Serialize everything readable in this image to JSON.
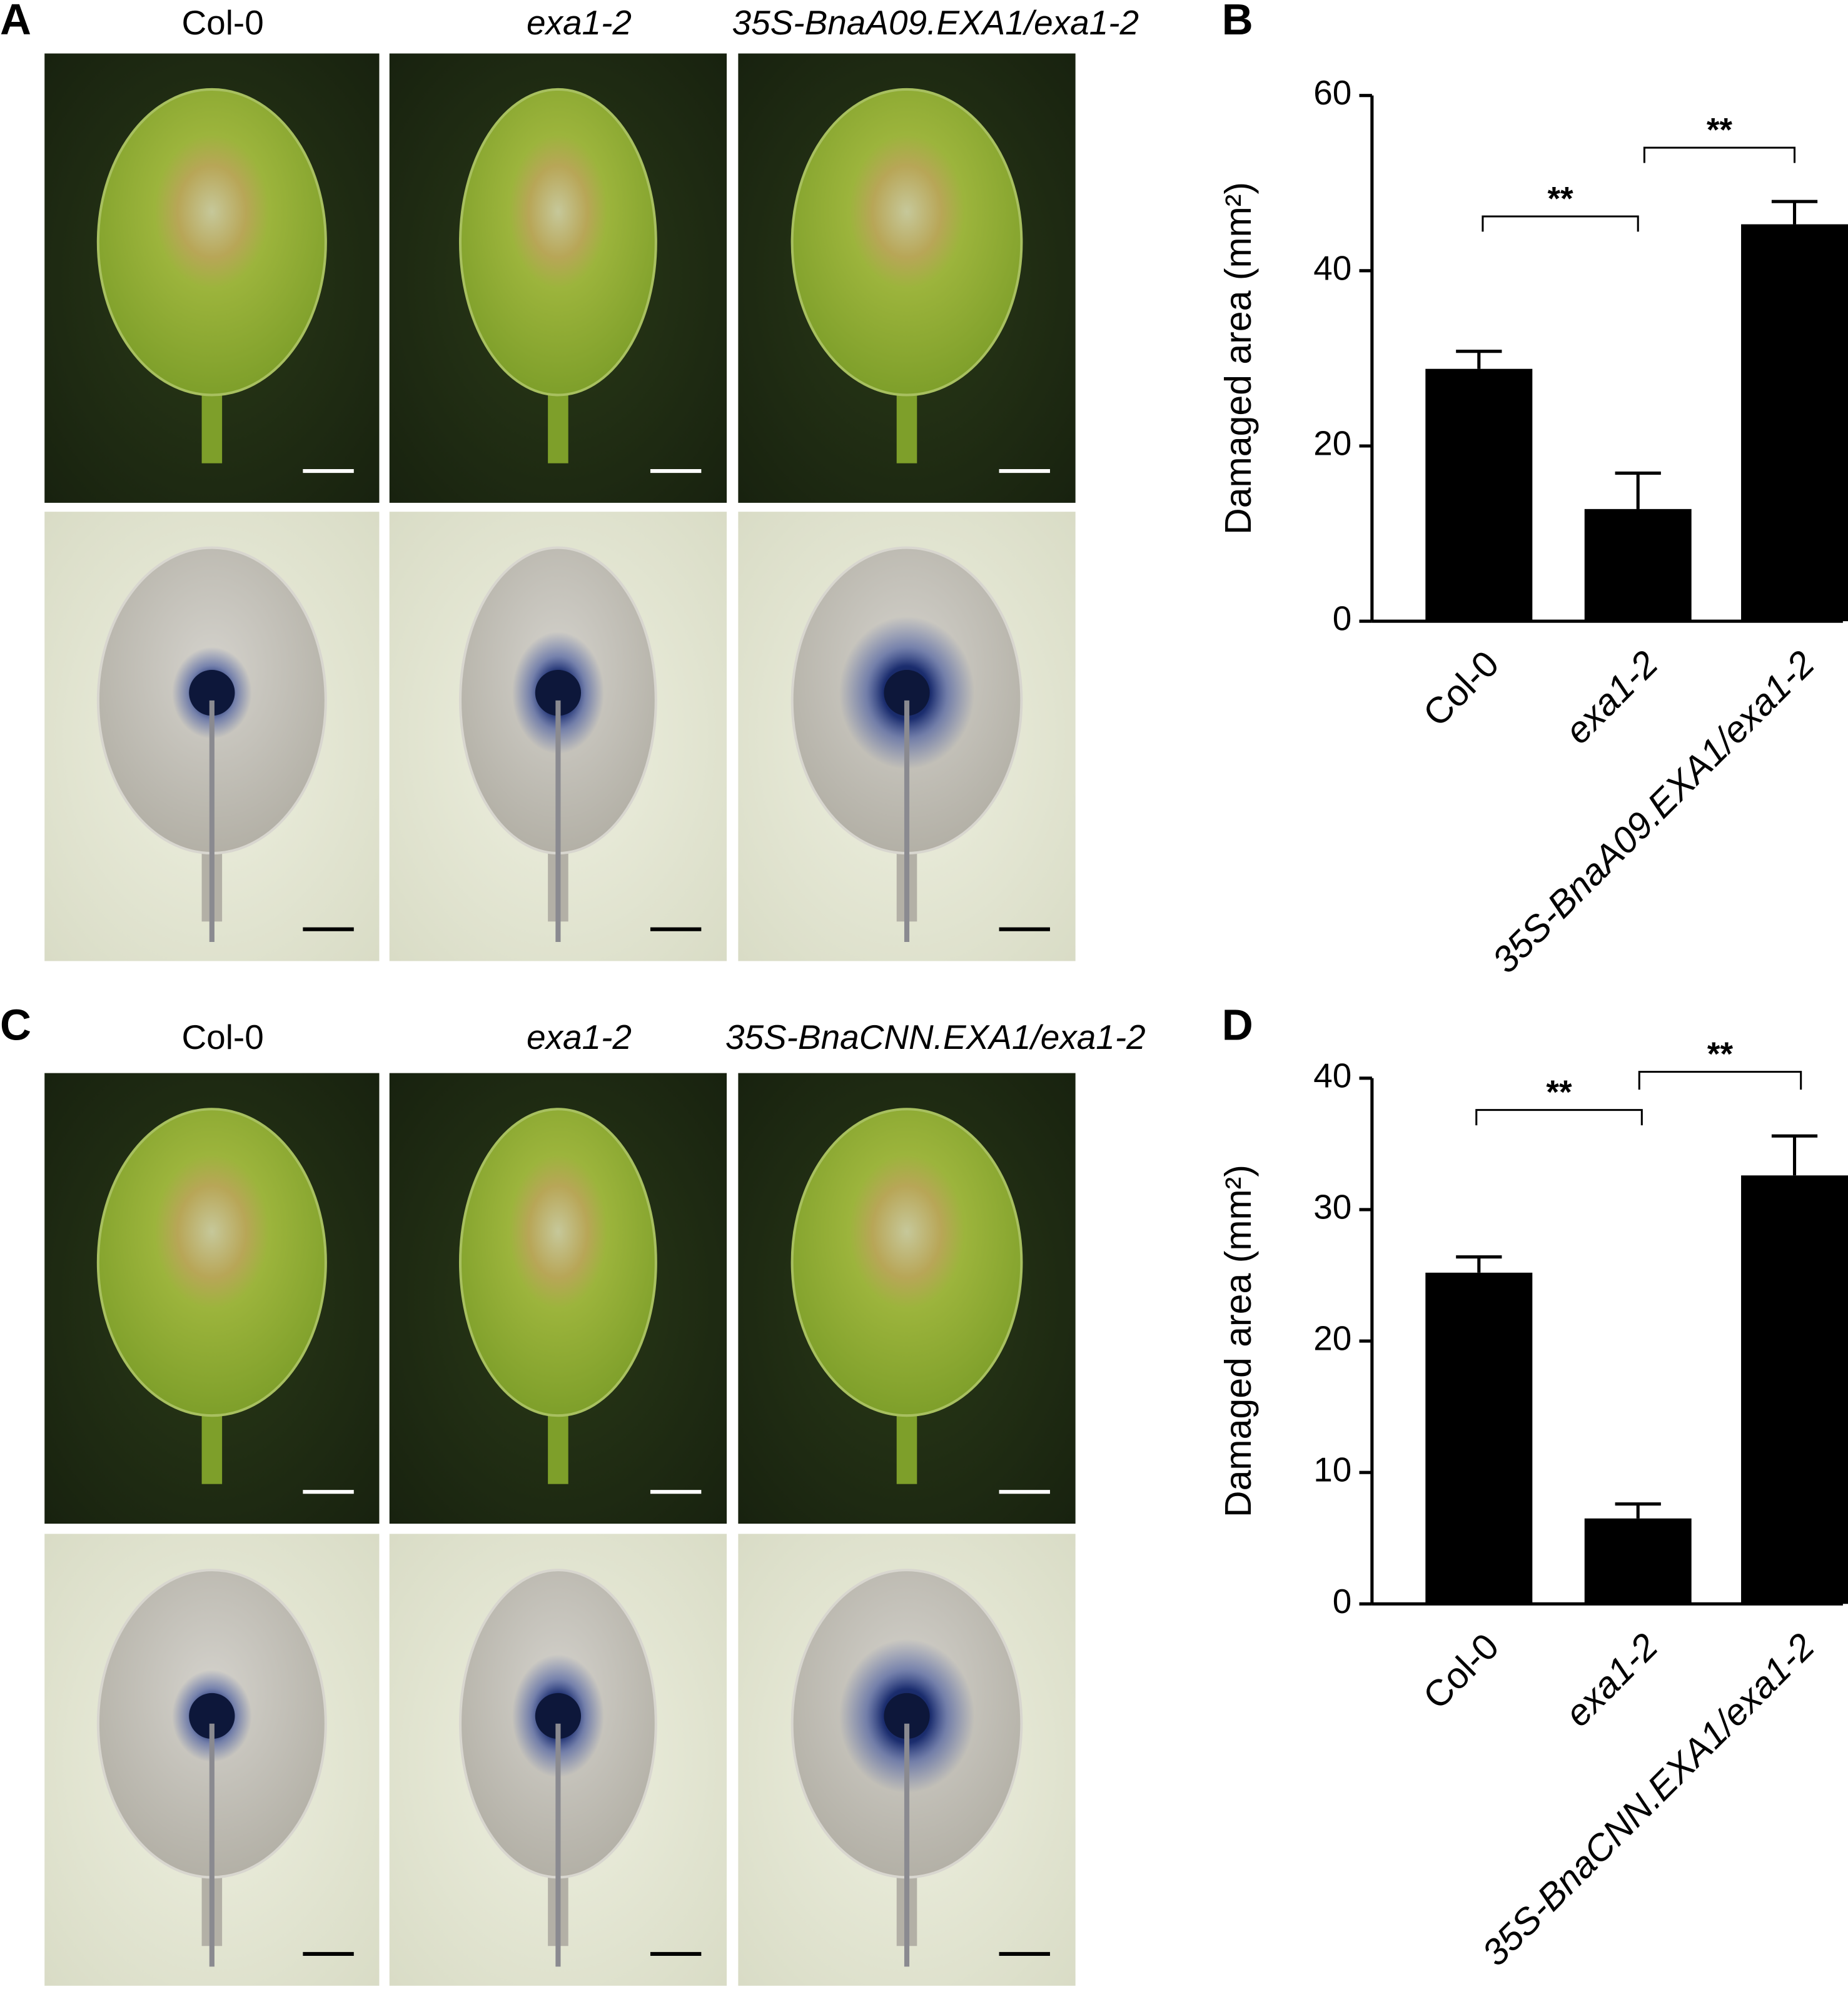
{
  "panels": [
    {
      "label": "A",
      "columns": [
        "Col-0",
        "exa1-2",
        "35S-BnaA09.EXA1/exa1-2"
      ]
    },
    {
      "label": "C",
      "columns": [
        "Col-0",
        "exa1-2",
        "35S-BnaCNN.EXA1/exa1-2"
      ]
    }
  ],
  "chart_data": [
    {
      "type": "bar",
      "label": "B",
      "y_label": "Damaged area (mm²)",
      "categories": [
        "Col-0",
        "exa1-2",
        "35S-BnaA09.EXA1/exa1-2"
      ],
      "values": [
        28.8,
        12.8,
        45.3
      ],
      "errors": [
        2.0,
        4.1,
        2.6
      ],
      "annotations": [
        "**",
        "**"
      ],
      "color": "#000000",
      "ylim": [
        0,
        60
      ],
      "yticks": [
        0,
        20,
        40,
        60
      ]
    },
    {
      "type": "bar",
      "label": "D",
      "y_label": "Damaged area (mm²)",
      "categories": [
        "Col-0",
        "exa1-2",
        "35S-BnaCNN.EXA1/exa1-2"
      ],
      "values": [
        25.2,
        6.5,
        32.6
      ],
      "errors": [
        1.2,
        1.1,
        3.0
      ],
      "annotations": [
        "**",
        "**"
      ],
      "color": "#000000",
      "ylim": [
        0,
        40
      ],
      "yticks": [
        0,
        10,
        20,
        30,
        40
      ]
    }
  ]
}
